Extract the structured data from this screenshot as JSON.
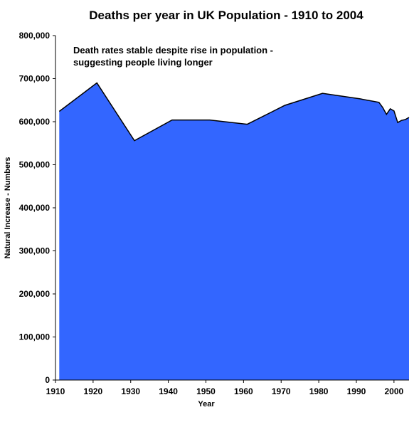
{
  "chart_data": {
    "type": "area",
    "title": "Deaths per year in UK Population - 1910 to 2004",
    "xlabel": "Year",
    "ylabel": "Natural Increase - Numbers",
    "xlim": [
      1910,
      2004
    ],
    "ylim": [
      0,
      800000
    ],
    "x_ticks": [
      1910,
      1920,
      1930,
      1940,
      1950,
      1960,
      1970,
      1980,
      1990,
      2000
    ],
    "x_tick_labels": [
      "1910",
      "1920",
      "1930",
      "1940",
      "1950",
      "1960",
      "1970",
      "1980",
      "1990",
      "2000"
    ],
    "y_ticks": [
      0,
      100000,
      200000,
      300000,
      400000,
      500000,
      600000,
      700000,
      800000
    ],
    "y_tick_labels": [
      "0",
      "100,000",
      "200,000",
      "300,000",
      "400,000",
      "500,000",
      "600,000",
      "700,000",
      "800,000"
    ],
    "grid": false,
    "legend": "none",
    "annotation": [
      "Death rates stable despite rise in population -",
      "suggesting people living longer"
    ],
    "fill_color": "#3366ff",
    "line_color": "#000000",
    "series": [
      {
        "x": [
          1911,
          1921,
          1931,
          1941,
          1951,
          1961,
          1971,
          1981,
          1991,
          1996,
          1997,
          1998,
          1999,
          2000,
          2001,
          2002,
          2003,
          2004
        ],
        "y": [
          624000,
          690000,
          556000,
          604000,
          604000,
          594000,
          638000,
          666000,
          653000,
          645000,
          633000,
          617000,
          630000,
          625000,
          598000,
          603000,
          605000,
          610000
        ]
      }
    ]
  }
}
